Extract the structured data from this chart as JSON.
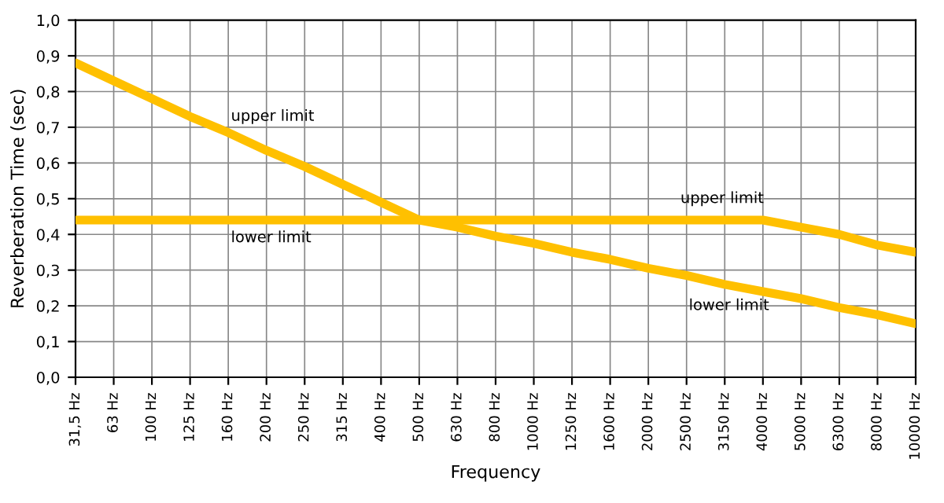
{
  "chart_data": {
    "type": "line",
    "categories": [
      "31,5 Hz",
      "63 Hz",
      "100 Hz",
      "125 Hz",
      "160 Hz",
      "200 Hz",
      "250 Hz",
      "315 Hz",
      "400 Hz",
      "500 Hz",
      "630 Hz",
      "800 Hz",
      "1000 Hz",
      "1250 Hz",
      "1600 Hz",
      "2000 Hz",
      "2500 Hz",
      "3150 Hz",
      "4000 Hz",
      "5000 Hz",
      "6300 Hz",
      "8000 Hz",
      "10000 Hz"
    ],
    "xlabel": "Frequency",
    "ylabel": "Reverberation Time (sec)",
    "series": [
      {
        "color": "#ffc000",
        "values": [
          0.88,
          0.83,
          0.78,
          0.73,
          0.685,
          0.635,
          0.59,
          0.54,
          0.49,
          0.44,
          0.42,
          0.395,
          0.375,
          0.35,
          0.33,
          0.305,
          0.285,
          0.26,
          0.24,
          0.22,
          0.195,
          0.175,
          0.15
        ]
      },
      {
        "color": "#ffc000",
        "values": [
          0.44,
          0.44,
          0.44,
          0.44,
          0.44,
          0.44,
          0.44,
          0.44,
          0.44,
          0.44,
          0.44,
          0.44,
          0.44,
          0.44,
          0.44,
          0.44,
          0.44,
          0.44,
          0.44,
          0.42,
          0.4,
          0.37,
          0.35
        ]
      }
    ],
    "annotations": [
      "upper limit",
      "lower limit",
      "upper limit",
      "lower limit"
    ],
    "ylim": [
      0,
      1
    ],
    "yticks": [
      {
        "value": 0,
        "label": "0,0"
      },
      {
        "value": 0.1,
        "label": "0,1"
      },
      {
        "value": 0.2,
        "label": "0,2"
      },
      {
        "value": 0.3,
        "label": "0,3"
      },
      {
        "value": 0.4,
        "label": "0,4"
      },
      {
        "value": 0.5,
        "label": "0,5"
      },
      {
        "value": 0.6,
        "label": "0,6"
      },
      {
        "value": 0.7,
        "label": "0,7"
      },
      {
        "value": 0.8,
        "label": "0,8"
      },
      {
        "value": 0.9,
        "label": "0,9"
      },
      {
        "value": 1,
        "label": "1,0"
      }
    ],
    "grid": true,
    "marker": "none",
    "line_style": "solid"
  }
}
